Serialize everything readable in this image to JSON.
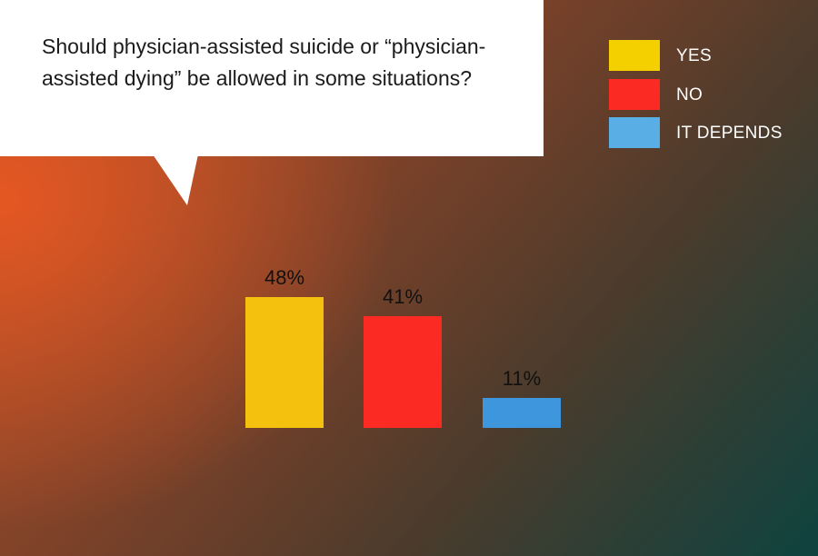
{
  "chart_data": {
    "type": "bar",
    "title": "Should physician-assisted suicide or “physician-assisted dying” be allowed in some situations?",
    "categories": [
      "YES",
      "NO",
      "IT DEPENDS"
    ],
    "values": [
      48,
      41,
      11
    ],
    "value_labels": [
      "48%",
      "41%",
      "11%"
    ],
    "colors": [
      "#f5c10f",
      "#fb2b24",
      "#3e97dc"
    ],
    "ylim": [
      0,
      100
    ],
    "grid": false,
    "legend": "top-right"
  },
  "legend": {
    "items": [
      {
        "label": "YES",
        "color": "#f4d000"
      },
      {
        "label": "NO",
        "color": "#fb2b24"
      },
      {
        "label": "IT DEPENDS",
        "color": "#5aaee6"
      }
    ]
  }
}
